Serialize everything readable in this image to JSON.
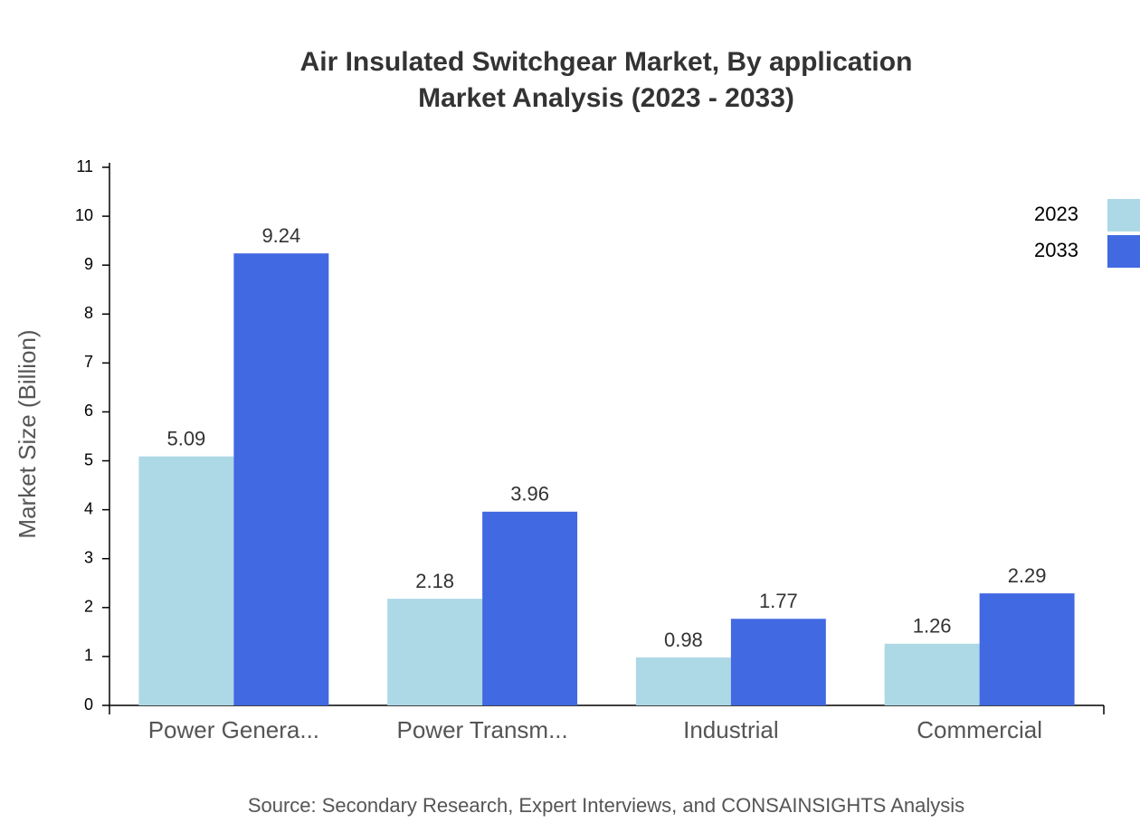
{
  "chart_data": {
    "type": "bar",
    "title": "Air Insulated Switchgear Market, By application",
    "subtitle": "Market Analysis (2023 - 2033)",
    "y_label": "Market Size (Billion)",
    "source": "Source: Secondary Research, Expert Interviews, and CONSAINSIGHTS Analysis",
    "categories": [
      "Power Genera...",
      "Power Transm...",
      "Industrial",
      "Commercial"
    ],
    "series": [
      {
        "name": "2023",
        "color": "#add8e6",
        "values": [
          5.09,
          2.18,
          0.98,
          1.26
        ]
      },
      {
        "name": "2033",
        "color": "#4169e1",
        "values": [
          9.24,
          3.96,
          1.77,
          2.29
        ]
      }
    ],
    "ylim": [
      0,
      11
    ],
    "yticks": [
      0,
      1,
      2,
      3,
      4,
      5,
      6,
      7,
      8,
      9,
      10,
      11
    ],
    "grid": false,
    "legend": "top-right"
  }
}
